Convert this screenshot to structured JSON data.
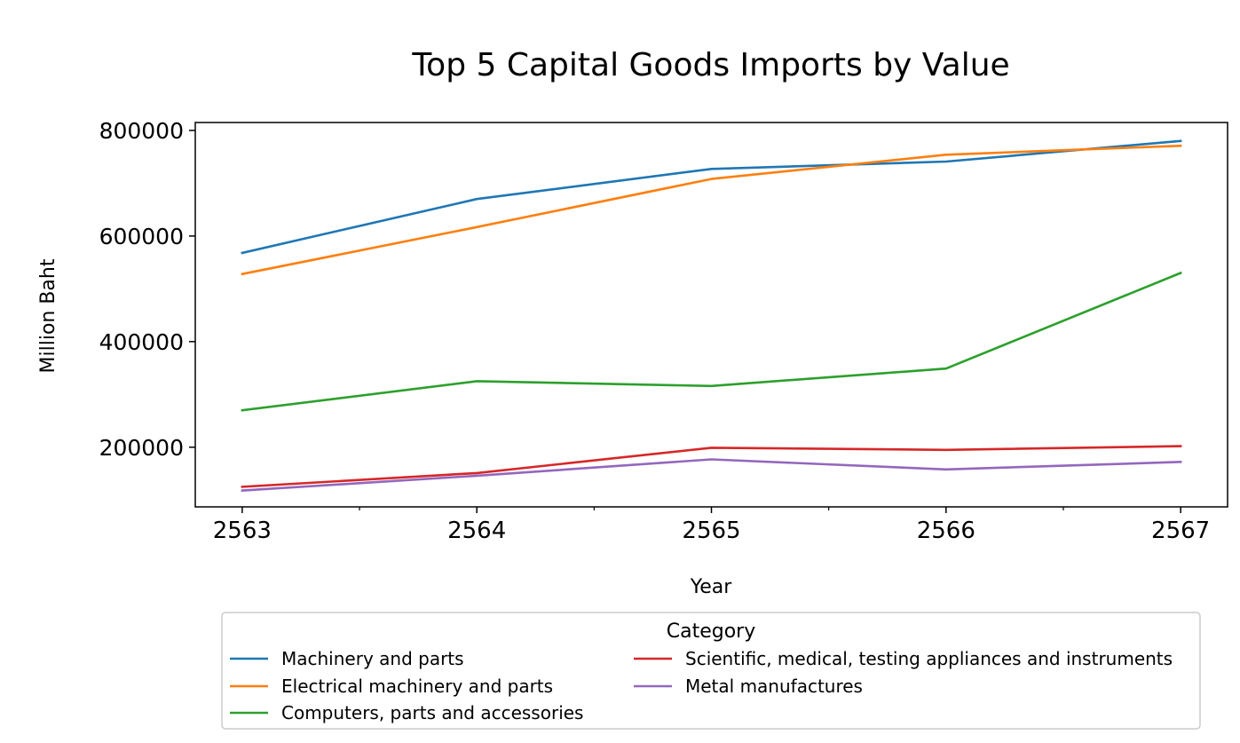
{
  "chart_data": {
    "type": "line",
    "title": "Top 5 Capital Goods Imports by Value",
    "xlabel": "Year",
    "ylabel": "Million Baht",
    "x": [
      2563,
      2564,
      2565,
      2566,
      2567
    ],
    "xticks": [
      "2563",
      "2564",
      "2565",
      "2566",
      "2567"
    ],
    "xlim": [
      2562.8,
      2567.2
    ],
    "yticks": [
      "200000",
      "400000",
      "600000",
      "800000"
    ],
    "ytick_values": [
      200000,
      400000,
      600000,
      800000
    ],
    "ylim": [
      87000,
      815000
    ],
    "grid": false,
    "legend": {
      "title": "Category",
      "placement": "bottom-center",
      "columns": 2
    },
    "series": [
      {
        "name": "Machinery and parts",
        "color": "#1f77b4",
        "values": [
          568000,
          670000,
          727000,
          741000,
          780000
        ]
      },
      {
        "name": "Electrical machinery and parts",
        "color": "#ff7f0e",
        "values": [
          528000,
          617000,
          708000,
          754000,
          771000
        ]
      },
      {
        "name": "Computers, parts and accessories",
        "color": "#2ca02c",
        "values": [
          270000,
          325000,
          316000,
          349000,
          530000
        ]
      },
      {
        "name": "Scientific, medical, testing appliances and instruments",
        "color": "#d62728",
        "values": [
          125000,
          151000,
          199000,
          195000,
          202000
        ]
      },
      {
        "name": "Metal manufactures",
        "color": "#9467bd",
        "values": [
          118000,
          146000,
          177000,
          158000,
          172000
        ]
      }
    ]
  }
}
